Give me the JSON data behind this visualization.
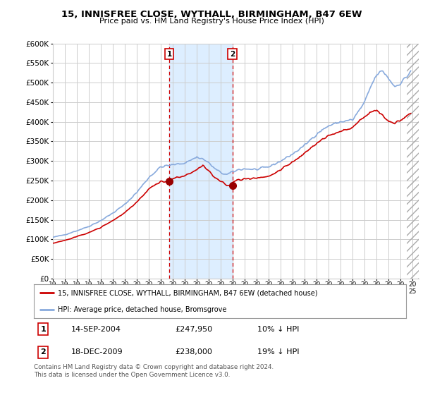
{
  "title": "15, INNISFREE CLOSE, WYTHALL, BIRMINGHAM, B47 6EW",
  "subtitle": "Price paid vs. HM Land Registry's House Price Index (HPI)",
  "legend_label_red": "15, INNISFREE CLOSE, WYTHALL, BIRMINGHAM, B47 6EW (detached house)",
  "legend_label_blue": "HPI: Average price, detached house, Bromsgrove",
  "footnote": "Contains HM Land Registry data © Crown copyright and database right 2024.\nThis data is licensed under the Open Government Licence v3.0.",
  "transaction1_label": "1",
  "transaction1_date": "14-SEP-2004",
  "transaction1_price": "£247,950",
  "transaction1_hpi": "10% ↓ HPI",
  "transaction2_label": "2",
  "transaction2_date": "18-DEC-2009",
  "transaction2_price": "£238,000",
  "transaction2_hpi": "19% ↓ HPI",
  "red_color": "#cc0000",
  "blue_color": "#88aadd",
  "highlight_color": "#ddeeff",
  "vline_color": "#cc0000",
  "grid_color": "#cccccc",
  "background_color": "#ffffff",
  "transaction1_x": 2004.71,
  "transaction2_x": 2009.96,
  "transaction1_y": 247950,
  "transaction2_y": 238000,
  "xmin": 1995.0,
  "xmax": 2025.5,
  "ylim": [
    0,
    600000
  ],
  "yticks": [
    0,
    50000,
    100000,
    150000,
    200000,
    250000,
    300000,
    350000,
    400000,
    450000,
    500000,
    550000,
    600000
  ]
}
